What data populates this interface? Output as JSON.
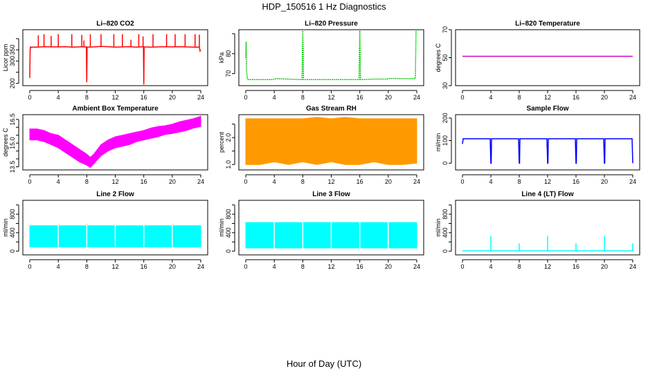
{
  "figure": {
    "title": "HDP_150516  1 Hz Diagnostics",
    "xlabel": "Hour of Day (UTC)"
  },
  "chart_data": [
    {
      "type": "line",
      "title": "Li–820 CO2",
      "ylabel": "Licor ppm",
      "color": "#ff0000",
      "ylim": [
        190,
        440
      ],
      "yticks": [
        200,
        250,
        300,
        350,
        400
      ],
      "yticklabels": [
        "200",
        "",
        "300",
        "350",
        ""
      ],
      "x": [
        0,
        0.05,
        0.1,
        0.15,
        0.3,
        1,
        2,
        3,
        4,
        5,
        6,
        7,
        7.95,
        8.0,
        8.05,
        9,
        10,
        11,
        12,
        13,
        14,
        15,
        15.95,
        16.0,
        16.05,
        17,
        18,
        19,
        20,
        21,
        22,
        23,
        23.8,
        23.9,
        24
      ],
      "y": [
        225,
        350,
        365,
        360,
        362,
        362,
        364,
        363,
        363,
        364,
        362,
        363,
        363,
        205,
        362,
        363,
        365,
        364,
        362,
        363,
        364,
        362,
        364,
        195,
        363,
        362,
        363,
        364,
        363,
        364,
        363,
        362,
        362,
        345,
        350
      ],
      "spikes": [
        {
          "x": 1.2,
          "y": 415
        },
        {
          "x": 2.0,
          "y": 420
        },
        {
          "x": 3.0,
          "y": 412
        },
        {
          "x": 4.0,
          "y": 420
        },
        {
          "x": 5.9,
          "y": 420
        },
        {
          "x": 7.3,
          "y": 417
        },
        {
          "x": 7.6,
          "y": 392
        },
        {
          "x": 8.5,
          "y": 420
        },
        {
          "x": 10.0,
          "y": 420
        },
        {
          "x": 11.8,
          "y": 420
        },
        {
          "x": 13.0,
          "y": 420
        },
        {
          "x": 14.2,
          "y": 395
        },
        {
          "x": 15.3,
          "y": 420
        },
        {
          "x": 15.9,
          "y": 410
        },
        {
          "x": 17.3,
          "y": 420
        },
        {
          "x": 19.2,
          "y": 420
        },
        {
          "x": 20.4,
          "y": 420
        },
        {
          "x": 21.8,
          "y": 420
        },
        {
          "x": 23.2,
          "y": 420
        },
        {
          "x": 23.8,
          "y": 418
        }
      ]
    },
    {
      "type": "line",
      "title": "Li–820 Pressure",
      "ylabel": "kPa",
      "color": "#00cc00",
      "ylim": [
        64,
        92
      ],
      "yticks": [
        70,
        80,
        90
      ],
      "yticklabels": [
        "70",
        "80",
        ""
      ],
      "x": [
        0,
        0.05,
        0.1,
        0.2,
        0.3,
        1,
        3,
        3.8,
        4.2,
        7.9,
        8,
        8.1,
        12,
        15.9,
        16,
        16.1,
        18,
        19.9,
        20.1,
        23.8,
        23.9,
        24
      ],
      "y": [
        78,
        86,
        72,
        68,
        67,
        67,
        67,
        67,
        67.5,
        67,
        92,
        67,
        67,
        67,
        92,
        67,
        67.3,
        67.3,
        67.6,
        67.5,
        92,
        92
      ]
    },
    {
      "type": "line",
      "title": "Li–820 Temperature",
      "ylabel": "degrees C",
      "color": "#cc00cc",
      "ylim": [
        30,
        70
      ],
      "yticks": [
        30,
        50,
        70
      ],
      "yticklabels": [
        "30",
        "50",
        "70"
      ],
      "x": [
        0,
        24
      ],
      "y": [
        51,
        51
      ]
    },
    {
      "type": "area",
      "title": "Ambient Box Temperature",
      "ylabel": "degrees C",
      "color": "#ff00ff",
      "ylim": [
        13.3,
        16.8
      ],
      "yticks": [
        13.5,
        14.0,
        14.5,
        15.0,
        15.5,
        16.0,
        16.5
      ],
      "yticklabels": [
        "13.5",
        "",
        "",
        "15.0",
        "",
        "",
        "16.5"
      ],
      "x": [
        0,
        1,
        2,
        3,
        4,
        5,
        6,
        7,
        8,
        8.5,
        9,
        10,
        11,
        12,
        13,
        14,
        15,
        16,
        17,
        18,
        19,
        20,
        21,
        22,
        23,
        24
      ],
      "upper": [
        15.9,
        15.9,
        15.8,
        15.6,
        15.5,
        15.2,
        14.9,
        14.6,
        14.3,
        14.1,
        14.3,
        14.9,
        15.2,
        15.4,
        15.5,
        15.6,
        15.7,
        15.8,
        15.95,
        16.05,
        16.1,
        16.2,
        16.35,
        16.45,
        16.55,
        16.7
      ],
      "lower": [
        15.2,
        15.2,
        15.1,
        14.9,
        14.7,
        14.4,
        14.1,
        13.8,
        13.6,
        13.45,
        13.7,
        14.2,
        14.5,
        14.7,
        14.8,
        14.9,
        15.1,
        15.2,
        15.3,
        15.4,
        15.55,
        15.6,
        15.7,
        15.8,
        15.95,
        16.05
      ]
    },
    {
      "type": "area",
      "title": "Gas Stream RH",
      "ylabel": "percent",
      "color": "#ff9900",
      "ylim": [
        0.8,
        2.85
      ],
      "yticks": [
        1.0,
        1.5,
        2.0,
        2.5
      ],
      "yticklabels": [
        "1.0",
        "",
        "2.0",
        ""
      ],
      "x": [
        0,
        2,
        4,
        6,
        8,
        10,
        12,
        14,
        16,
        18,
        20,
        22,
        24
      ],
      "upper": [
        2.7,
        2.7,
        2.7,
        2.7,
        2.7,
        2.75,
        2.7,
        2.75,
        2.7,
        2.7,
        2.7,
        2.7,
        2.7
      ],
      "lower": [
        1.0,
        1.0,
        1.1,
        1.0,
        1.1,
        1.0,
        1.1,
        1.0,
        1.0,
        1.1,
        1.0,
        1.0,
        1.05
      ]
    },
    {
      "type": "line",
      "title": "Sample Flow",
      "ylabel": "ml/min",
      "color": "#0000ff",
      "ylim": [
        -30,
        215
      ],
      "yticks": [
        0,
        100,
        200
      ],
      "yticklabels": [
        "0",
        "100",
        "200"
      ],
      "x": [
        0,
        0.1,
        0.2,
        3.9,
        4.0,
        4.05,
        4.1,
        7.9,
        8.0,
        8.05,
        8.1,
        11.9,
        12.0,
        12.05,
        12.1,
        15.9,
        16.0,
        16.05,
        16.1,
        19.9,
        20.0,
        20.05,
        20.1,
        23.9,
        24.0
      ],
      "y": [
        85,
        108,
        108,
        108,
        0,
        0,
        108,
        108,
        0,
        0,
        108,
        108,
        0,
        0,
        108,
        108,
        0,
        0,
        108,
        108,
        0,
        0,
        108,
        108,
        0
      ]
    },
    {
      "type": "area",
      "title": "Line 2 Flow",
      "ylabel": "ml/min",
      "color": "#00ffff",
      "ylim": [
        -80,
        1100
      ],
      "yticks": [
        0,
        200,
        400,
        600,
        800,
        1000
      ],
      "yticklabels": [
        "0",
        "",
        "400",
        "",
        "800",
        ""
      ],
      "x": [
        0,
        24
      ],
      "upper": [
        550,
        550
      ],
      "lower": [
        90,
        90
      ],
      "gaps": [
        4,
        8,
        12,
        16,
        20
      ]
    },
    {
      "type": "area",
      "title": "Line 3 Flow",
      "ylabel": "ml/min",
      "color": "#00ffff",
      "ylim": [
        -80,
        1100
      ],
      "yticks": [
        0,
        200,
        400,
        600,
        800,
        1000
      ],
      "yticklabels": [
        "0",
        "",
        "400",
        "",
        "800",
        ""
      ],
      "x": [
        0,
        24
      ],
      "upper": [
        620,
        620
      ],
      "lower": [
        70,
        70
      ],
      "gaps": [
        4,
        8,
        12,
        16,
        20
      ]
    },
    {
      "type": "line",
      "title": "Line 4 (LT) Flow",
      "ylabel": "ml/min",
      "color": "#00ffff",
      "ylim": [
        -80,
        1100
      ],
      "yticks": [
        0,
        200,
        400,
        600,
        800,
        1000
      ],
      "yticklabels": [
        "0",
        "",
        "400",
        "",
        "800",
        ""
      ],
      "x": [
        0,
        24
      ],
      "y": [
        5,
        5
      ],
      "spikes": [
        {
          "x": 4.0,
          "y": 330
        },
        {
          "x": 8.0,
          "y": 170
        },
        {
          "x": 12.0,
          "y": 330
        },
        {
          "x": 16.0,
          "y": 170
        },
        {
          "x": 20.0,
          "y": 330
        },
        {
          "x": 24.0,
          "y": 170
        }
      ]
    }
  ],
  "shared_x": {
    "xlim": [
      0,
      24
    ],
    "xticks": [
      "0",
      "4",
      "8",
      "12",
      "16",
      "20",
      "24"
    ],
    "xtick_values": [
      0,
      4,
      8,
      12,
      16,
      20,
      24
    ]
  }
}
